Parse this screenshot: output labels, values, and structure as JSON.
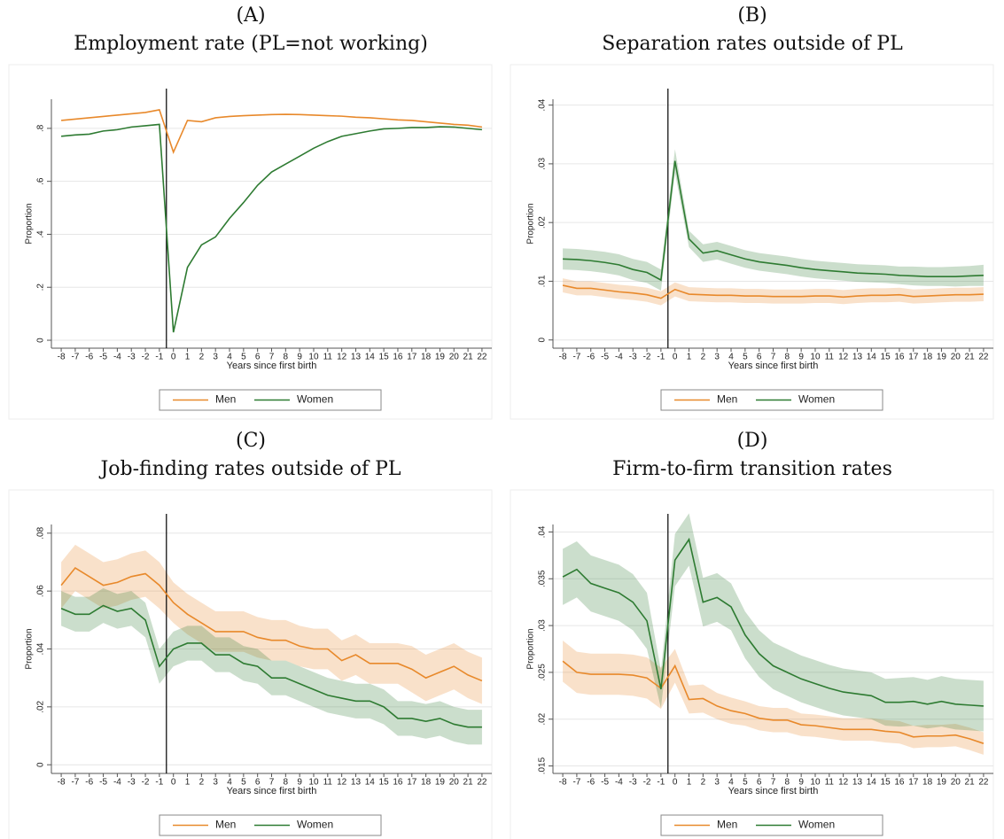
{
  "chart_data": [
    {
      "type": "line",
      "panel": "(A)",
      "title": "Employment rate (PL=not working)",
      "xlabel": "Years since first birth",
      "ylabel": "Proportion",
      "x": [
        -8,
        -7,
        -6,
        -5,
        -4,
        -3,
        -2,
        -1,
        0,
        1,
        2,
        3,
        4,
        5,
        6,
        7,
        8,
        9,
        10,
        11,
        12,
        13,
        14,
        15,
        16,
        17,
        18,
        19,
        20,
        21,
        22
      ],
      "xlim": [
        -8.7,
        22.7
      ],
      "xticks": [
        -8,
        -7,
        -6,
        -5,
        -4,
        -3,
        -2,
        -1,
        0,
        1,
        2,
        3,
        4,
        5,
        6,
        7,
        8,
        9,
        10,
        11,
        12,
        13,
        14,
        15,
        16,
        17,
        18,
        19,
        20,
        21,
        22
      ],
      "ylim": [
        -0.03,
        0.91
      ],
      "yticks": [
        0,
        {
          "value": 0.2,
          "label": ".2"
        },
        {
          "value": 0.4,
          "label": ".4"
        },
        {
          "value": 0.6,
          "label": ".6"
        },
        {
          "value": 0.8,
          "label": ".8"
        }
      ],
      "vline": -0.5,
      "grid": true,
      "legend": "bottom",
      "series": [
        {
          "name": "Men",
          "color": "#e8892b",
          "values": [
            0.83,
            0.835,
            0.84,
            0.845,
            0.85,
            0.855,
            0.86,
            0.87,
            0.71,
            0.83,
            0.825,
            0.84,
            0.845,
            0.848,
            0.85,
            0.852,
            0.853,
            0.852,
            0.85,
            0.848,
            0.846,
            0.842,
            0.84,
            0.836,
            0.832,
            0.83,
            0.825,
            0.82,
            0.815,
            0.812,
            0.805
          ]
        },
        {
          "name": "Women",
          "color": "#2e7b32",
          "values": [
            0.77,
            0.775,
            0.778,
            0.79,
            0.795,
            0.805,
            0.81,
            0.815,
            0.03,
            0.275,
            0.36,
            0.39,
            0.46,
            0.52,
            0.585,
            0.635,
            0.665,
            0.695,
            0.725,
            0.75,
            0.77,
            0.78,
            0.79,
            0.798,
            0.8,
            0.803,
            0.803,
            0.806,
            0.805,
            0.8,
            0.795
          ]
        }
      ]
    },
    {
      "type": "line",
      "panel": "(B)",
      "title": "Separation rates outside of PL",
      "xlabel": "Years since first birth",
      "ylabel": "Proportion",
      "x": [
        -8,
        -7,
        -6,
        -5,
        -4,
        -3,
        -2,
        -1,
        0,
        1,
        2,
        3,
        4,
        5,
        6,
        7,
        8,
        9,
        10,
        11,
        12,
        13,
        14,
        15,
        16,
        17,
        18,
        19,
        20,
        21,
        22
      ],
      "xlim": [
        -8.7,
        22.7
      ],
      "xticks": [
        -8,
        -7,
        -6,
        -5,
        -4,
        -3,
        -2,
        -1,
        0,
        1,
        2,
        3,
        4,
        5,
        6,
        7,
        8,
        9,
        10,
        11,
        12,
        13,
        14,
        15,
        16,
        17,
        18,
        19,
        20,
        21,
        22
      ],
      "ylim": [
        -0.0014,
        0.041
      ],
      "yticks": [
        0,
        {
          "value": 0.01,
          "label": ".01"
        },
        {
          "value": 0.02,
          "label": ".02"
        },
        {
          "value": 0.03,
          "label": ".03"
        },
        {
          "value": 0.04,
          "label": ".04"
        }
      ],
      "vline": -0.5,
      "grid": true,
      "legend": "bottom",
      "series": [
        {
          "name": "Men",
          "color": "#e8892b",
          "values": [
            0.0093,
            0.0088,
            0.0088,
            0.0085,
            0.0082,
            0.008,
            0.0077,
            0.0071,
            0.0086,
            0.0078,
            0.0077,
            0.0076,
            0.0076,
            0.0075,
            0.0075,
            0.0074,
            0.0074,
            0.0074,
            0.0075,
            0.0075,
            0.0073,
            0.0075,
            0.0076,
            0.0076,
            0.0077,
            0.0074,
            0.0075,
            0.0076,
            0.0077,
            0.0077,
            0.0078
          ],
          "ci": [
            0.0012,
            0.0012,
            0.0012,
            0.0012,
            0.0012,
            0.0012,
            0.0012,
            0.0012,
            0.0012,
            0.0012,
            0.0012,
            0.0012,
            0.0012,
            0.0012,
            0.0012,
            0.0012,
            0.0012,
            0.0012,
            0.0012,
            0.0012,
            0.0012,
            0.0012,
            0.0012,
            0.0012,
            0.0012,
            0.0012,
            0.0012,
            0.0012,
            0.0012,
            0.0012,
            0.0012
          ]
        },
        {
          "name": "Women",
          "color": "#2e7b32",
          "values": [
            0.0138,
            0.0137,
            0.0135,
            0.0132,
            0.0128,
            0.012,
            0.0115,
            0.0102,
            0.0305,
            0.0172,
            0.0148,
            0.0152,
            0.0145,
            0.0138,
            0.0133,
            0.013,
            0.0127,
            0.0123,
            0.012,
            0.0118,
            0.0116,
            0.0114,
            0.0113,
            0.0112,
            0.011,
            0.0109,
            0.0108,
            0.0108,
            0.0108,
            0.0109,
            0.011
          ],
          "ci": [
            0.0018,
            0.0018,
            0.0018,
            0.0018,
            0.0018,
            0.0018,
            0.0018,
            0.0018,
            0.002,
            0.0014,
            0.0015,
            0.0015,
            0.0015,
            0.0015,
            0.0015,
            0.0015,
            0.0015,
            0.0015,
            0.0015,
            0.0015,
            0.0015,
            0.0015,
            0.0015,
            0.0015,
            0.0015,
            0.0016,
            0.0016,
            0.0016,
            0.0017,
            0.0017,
            0.0018
          ]
        }
      ]
    },
    {
      "type": "line",
      "panel": "(C)",
      "title": "Job-finding rates outside of PL",
      "xlabel": "Years since first birth",
      "ylabel": "Proportion",
      "x": [
        -8,
        -7,
        -6,
        -5,
        -4,
        -3,
        -2,
        -1,
        0,
        1,
        2,
        3,
        4,
        5,
        6,
        7,
        8,
        9,
        10,
        11,
        12,
        13,
        14,
        15,
        16,
        17,
        18,
        19,
        20,
        21,
        22
      ],
      "xlim": [
        -8.7,
        22.7
      ],
      "xticks": [
        -8,
        -7,
        -6,
        -5,
        -4,
        -3,
        -2,
        -1,
        0,
        1,
        2,
        3,
        4,
        5,
        6,
        7,
        8,
        9,
        10,
        11,
        12,
        13,
        14,
        15,
        16,
        17,
        18,
        19,
        20,
        21,
        22
      ],
      "ylim": [
        -0.003,
        0.083
      ],
      "yticks": [
        0,
        {
          "value": 0.02,
          "label": ".02"
        },
        {
          "value": 0.04,
          "label": ".04"
        },
        {
          "value": 0.06,
          "label": ".06"
        },
        {
          "value": 0.08,
          "label": ".08"
        }
      ],
      "vline": -0.5,
      "grid": true,
      "legend": "bottom",
      "series": [
        {
          "name": "Men",
          "color": "#e8892b",
          "values": [
            0.062,
            0.068,
            0.065,
            0.062,
            0.063,
            0.065,
            0.066,
            0.062,
            0.056,
            0.052,
            0.049,
            0.046,
            0.046,
            0.046,
            0.044,
            0.043,
            0.043,
            0.041,
            0.04,
            0.04,
            0.036,
            0.038,
            0.035,
            0.035,
            0.035,
            0.033,
            0.03,
            0.032,
            0.034,
            0.031,
            0.029
          ],
          "ci": [
            0.008,
            0.008,
            0.008,
            0.008,
            0.008,
            0.008,
            0.008,
            0.008,
            0.007,
            0.007,
            0.007,
            0.007,
            0.007,
            0.007,
            0.007,
            0.007,
            0.007,
            0.007,
            0.007,
            0.007,
            0.007,
            0.007,
            0.007,
            0.007,
            0.007,
            0.008,
            0.008,
            0.008,
            0.008,
            0.008,
            0.008
          ]
        },
        {
          "name": "Women",
          "color": "#2e7b32",
          "values": [
            0.054,
            0.052,
            0.052,
            0.055,
            0.053,
            0.054,
            0.05,
            0.034,
            0.04,
            0.042,
            0.042,
            0.038,
            0.038,
            0.035,
            0.034,
            0.03,
            0.03,
            0.028,
            0.026,
            0.024,
            0.023,
            0.022,
            0.022,
            0.02,
            0.016,
            0.016,
            0.015,
            0.016,
            0.014,
            0.013,
            0.013
          ],
          "ci": [
            0.006,
            0.006,
            0.006,
            0.006,
            0.006,
            0.006,
            0.006,
            0.006,
            0.006,
            0.006,
            0.006,
            0.006,
            0.006,
            0.006,
            0.006,
            0.006,
            0.006,
            0.006,
            0.006,
            0.006,
            0.006,
            0.006,
            0.006,
            0.006,
            0.006,
            0.006,
            0.006,
            0.006,
            0.006,
            0.006,
            0.006
          ]
        }
      ]
    },
    {
      "type": "line",
      "panel": "(D)",
      "title": "Firm-to-firm transition rates",
      "xlabel": "Years since first birth",
      "ylabel": "Proportion",
      "x": [
        -8,
        -7,
        -6,
        -5,
        -4,
        -3,
        -2,
        -1,
        0,
        1,
        2,
        3,
        4,
        5,
        6,
        7,
        8,
        9,
        10,
        11,
        12,
        13,
        14,
        15,
        16,
        17,
        18,
        19,
        20,
        21,
        22
      ],
      "xlim": [
        -8.7,
        22.7
      ],
      "xticks": [
        -8,
        -7,
        -6,
        -5,
        -4,
        -3,
        -2,
        -1,
        0,
        1,
        2,
        3,
        4,
        5,
        6,
        7,
        8,
        9,
        10,
        11,
        12,
        13,
        14,
        15,
        16,
        17,
        18,
        19,
        20,
        21,
        22
      ],
      "ylim": [
        0.0142,
        0.0408
      ],
      "yticks": [
        {
          "value": 0.015,
          "label": ".015"
        },
        {
          "value": 0.02,
          "label": ".02"
        },
        {
          "value": 0.025,
          "label": ".025"
        },
        {
          "value": 0.03,
          "label": ".03"
        },
        {
          "value": 0.035,
          "label": ".035"
        },
        {
          "value": 0.04,
          "label": ".04"
        }
      ],
      "vline": -0.5,
      "grid": true,
      "legend": "bottom",
      "series": [
        {
          "name": "Men",
          "color": "#e8892b",
          "values": [
            0.0262,
            0.025,
            0.0248,
            0.0248,
            0.0248,
            0.0247,
            0.0244,
            0.0233,
            0.0257,
            0.0221,
            0.0222,
            0.0214,
            0.0209,
            0.0206,
            0.0201,
            0.0199,
            0.0199,
            0.0194,
            0.0193,
            0.0191,
            0.0189,
            0.0189,
            0.0189,
            0.0187,
            0.0186,
            0.0181,
            0.0182,
            0.0182,
            0.0183,
            0.0179,
            0.0174
          ],
          "ci": [
            0.0022,
            0.0022,
            0.0022,
            0.0022,
            0.0022,
            0.0022,
            0.0022,
            0.0022,
            0.0018,
            0.0015,
            0.0015,
            0.0014,
            0.0014,
            0.0013,
            0.0013,
            0.0013,
            0.0013,
            0.0012,
            0.0012,
            0.0012,
            0.0012,
            0.0012,
            0.0012,
            0.0012,
            0.0012,
            0.0012,
            0.0012,
            0.0012,
            0.0012,
            0.0012,
            0.0012
          ]
        },
        {
          "name": "Women",
          "color": "#2e7b32",
          "values": [
            0.0352,
            0.036,
            0.0345,
            0.034,
            0.0335,
            0.0325,
            0.0305,
            0.0232,
            0.037,
            0.0392,
            0.0325,
            0.033,
            0.032,
            0.029,
            0.027,
            0.0257,
            0.025,
            0.0243,
            0.0238,
            0.0233,
            0.0229,
            0.0227,
            0.0225,
            0.0218,
            0.0218,
            0.0219,
            0.0216,
            0.0219,
            0.0216,
            0.0215,
            0.0214
          ],
          "ci": [
            0.003,
            0.003,
            0.003,
            0.003,
            0.003,
            0.003,
            0.003,
            0.002,
            0.0028,
            0.0028,
            0.0026,
            0.0026,
            0.0025,
            0.0025,
            0.0025,
            0.0025,
            0.0025,
            0.0025,
            0.0025,
            0.0025,
            0.0025,
            0.0025,
            0.0025,
            0.0025,
            0.0026,
            0.0026,
            0.0026,
            0.0027,
            0.0027,
            0.0027,
            0.0027
          ]
        }
      ]
    }
  ]
}
